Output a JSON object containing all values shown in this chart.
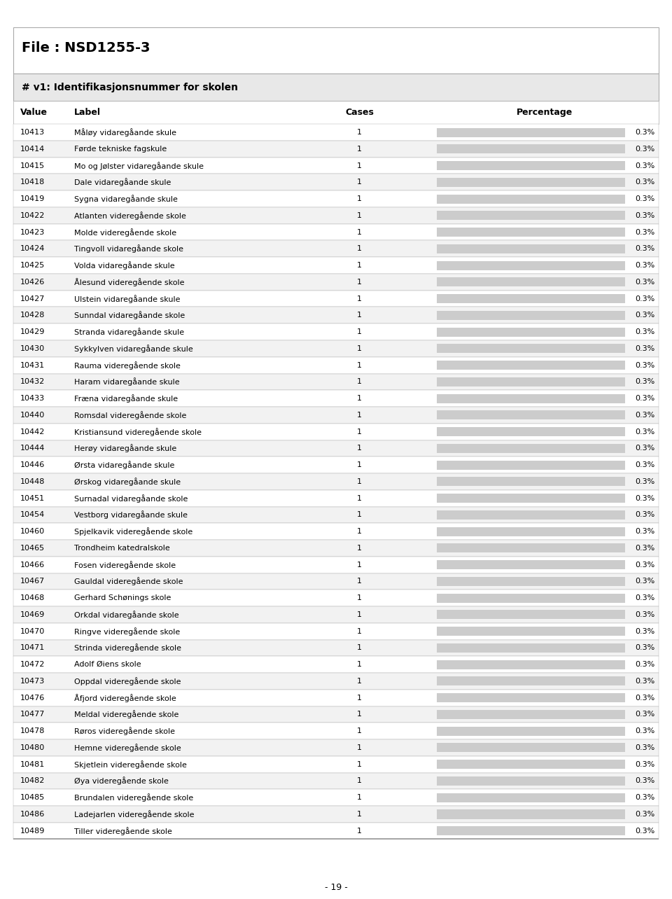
{
  "file_title": "File : NSD1255-3",
  "section_title": "# v1: Identifikasjonsnummer for skolen",
  "columns": [
    "Value",
    "Label",
    "Cases",
    "Percentage"
  ],
  "rows": [
    [
      "10413",
      "Måløy vidaregåande skule",
      "1",
      "0.3%"
    ],
    [
      "10414",
      "Førde tekniske fagskule",
      "1",
      "0.3%"
    ],
    [
      "10415",
      "Mo og Jølster vidaregåande skule",
      "1",
      "0.3%"
    ],
    [
      "10418",
      "Dale vidaregåande skule",
      "1",
      "0.3%"
    ],
    [
      "10419",
      "Sygna vidaregåande skule",
      "1",
      "0.3%"
    ],
    [
      "10422",
      "Atlanten videregående skole",
      "1",
      "0.3%"
    ],
    [
      "10423",
      "Molde videregående skole",
      "1",
      "0.3%"
    ],
    [
      "10424",
      "Tingvoll vidaregåande skole",
      "1",
      "0.3%"
    ],
    [
      "10425",
      "Volda vidaregåande skule",
      "1",
      "0.3%"
    ],
    [
      "10426",
      "Ålesund videregående skole",
      "1",
      "0.3%"
    ],
    [
      "10427",
      "Ulstein vidaregåande skule",
      "1",
      "0.3%"
    ],
    [
      "10428",
      "Sunndal vidaregåande skole",
      "1",
      "0.3%"
    ],
    [
      "10429",
      "Stranda vidaregåande skule",
      "1",
      "0.3%"
    ],
    [
      "10430",
      "Sykkylven vidaregåande skule",
      "1",
      "0.3%"
    ],
    [
      "10431",
      "Rauma videregående skole",
      "1",
      "0.3%"
    ],
    [
      "10432",
      "Haram vidaregåande skule",
      "1",
      "0.3%"
    ],
    [
      "10433",
      "Fræna vidaregåande skule",
      "1",
      "0.3%"
    ],
    [
      "10440",
      "Romsdal videregående skole",
      "1",
      "0.3%"
    ],
    [
      "10442",
      "Kristiansund videregående skole",
      "1",
      "0.3%"
    ],
    [
      "10444",
      "Herøy vidaregåande skule",
      "1",
      "0.3%"
    ],
    [
      "10446",
      "Ørsta vidaregåande skule",
      "1",
      "0.3%"
    ],
    [
      "10448",
      "Ørskog vidaregåande skule",
      "1",
      "0.3%"
    ],
    [
      "10451",
      "Surnadal vidaregåande skole",
      "1",
      "0.3%"
    ],
    [
      "10454",
      "Vestborg vidaregåande skule",
      "1",
      "0.3%"
    ],
    [
      "10460",
      "Spjelkavik videregående skole",
      "1",
      "0.3%"
    ],
    [
      "10465",
      "Trondheim katedralskole",
      "1",
      "0.3%"
    ],
    [
      "10466",
      "Fosen videregående skole",
      "1",
      "0.3%"
    ],
    [
      "10467",
      "Gauldal videregående skole",
      "1",
      "0.3%"
    ],
    [
      "10468",
      "Gerhard Schønings skole",
      "1",
      "0.3%"
    ],
    [
      "10469",
      "Orkdal vidaregåande skole",
      "1",
      "0.3%"
    ],
    [
      "10470",
      "Ringve videregående skole",
      "1",
      "0.3%"
    ],
    [
      "10471",
      "Strinda videregående skole",
      "1",
      "0.3%"
    ],
    [
      "10472",
      "Adolf Øiens skole",
      "1",
      "0.3%"
    ],
    [
      "10473",
      "Oppdal videregående skole",
      "1",
      "0.3%"
    ],
    [
      "10476",
      "Åfjord videregående skole",
      "1",
      "0.3%"
    ],
    [
      "10477",
      "Meldal videregående skole",
      "1",
      "0.3%"
    ],
    [
      "10478",
      "Røros videregående skole",
      "1",
      "0.3%"
    ],
    [
      "10480",
      "Hemne videregående skole",
      "1",
      "0.3%"
    ],
    [
      "10481",
      "Skjetlein videregående skole",
      "1",
      "0.3%"
    ],
    [
      "10482",
      "Øya videregående skole",
      "1",
      "0.3%"
    ],
    [
      "10485",
      "Brundalen videregående skole",
      "1",
      "0.3%"
    ],
    [
      "10486",
      "Ladejarlen videregående skole",
      "1",
      "0.3%"
    ],
    [
      "10489",
      "Tiller videregående skole",
      "1",
      "0.3%"
    ]
  ],
  "bar_color": "#cccccc",
  "bg_color": "#ffffff",
  "section_bg": "#e8e8e8",
  "row_alt_color": "#f2f2f2",
  "row_color": "#ffffff",
  "text_color": "#000000",
  "border_color": "#aaaaaa",
  "page_number": "- 19 -"
}
